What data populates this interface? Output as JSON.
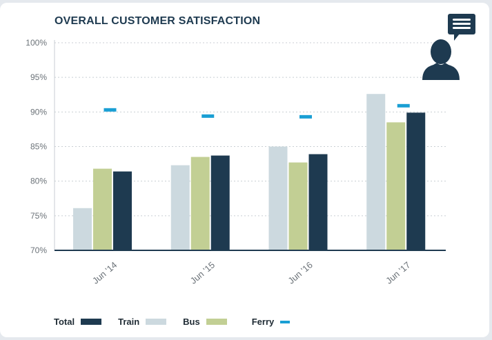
{
  "chart_data": {
    "type": "bar",
    "title": "OVERALL CUSTOMER SATISFACTION",
    "categories": [
      "Jun '14",
      "Jun '15",
      "Jun '16",
      "Jun '17"
    ],
    "ylim": [
      70,
      100
    ],
    "yticks": [
      70,
      75,
      80,
      85,
      90,
      95,
      100
    ],
    "ytick_labels": [
      "70%",
      "75%",
      "80%",
      "85%",
      "90%",
      "95%",
      "100%"
    ],
    "grid": true,
    "legend_position": "bottom-left",
    "series": [
      {
        "name": "Train",
        "kind": "bar",
        "color": "#ccd9df",
        "values": [
          76.1,
          82.3,
          85.0,
          92.6
        ]
      },
      {
        "name": "Bus",
        "kind": "bar",
        "color": "#c2cf94",
        "values": [
          81.8,
          83.5,
          82.7,
          88.5
        ]
      },
      {
        "name": "Total",
        "kind": "bar",
        "color": "#1e3a50",
        "values": [
          81.4,
          83.7,
          83.9,
          89.9
        ]
      },
      {
        "name": "Ferry",
        "kind": "marker",
        "color": "#1a9fd4",
        "values": [
          90.3,
          89.4,
          89.3,
          90.9
        ]
      }
    ],
    "legend": [
      "Total",
      "Train",
      "Bus",
      "Ferry"
    ]
  },
  "icons": {
    "person": "person-silhouette-icon",
    "chat": "chat-bubble-icon"
  },
  "colors": {
    "axis": "#1e3a50",
    "grid": "#c8ced3",
    "tick_text": "#6b7278"
  }
}
